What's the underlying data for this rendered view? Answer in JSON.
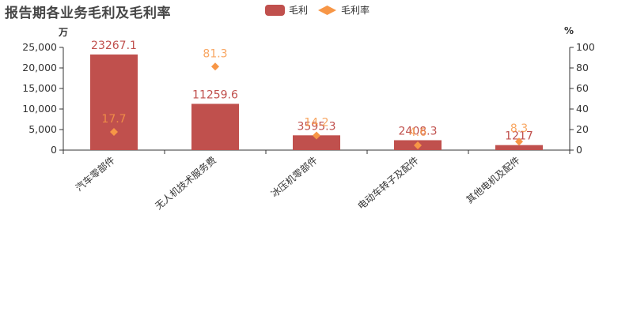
{
  "title": "报告期各业务毛利及毛利率",
  "legend": {
    "bar_label": "毛利",
    "line_label": "毛利率"
  },
  "units": {
    "left": "万",
    "right": "%"
  },
  "colors": {
    "bar": "#c0504d",
    "marker": "#f79646",
    "axis": "#333333"
  },
  "chart_data": {
    "type": "bar",
    "categories": [
      "汽车零部件",
      "无人机技术服务费",
      "冰压机零部件",
      "电动车转子及配件",
      "其他电机及配件"
    ],
    "series": [
      {
        "name": "毛利",
        "type": "bar",
        "axis": "left",
        "values": [
          23267.1,
          11259.6,
          3595.3,
          2408.3,
          1217
        ],
        "labels": [
          "23267.1",
          "11259.6",
          "3595.3",
          "2408.3",
          "1217"
        ]
      },
      {
        "name": "毛利率",
        "type": "scatter",
        "axis": "right",
        "values": [
          17.7,
          81.3,
          14.2,
          4.6,
          8.3
        ],
        "labels": [
          "17.7",
          "81.3",
          "14.2",
          "4.6",
          "8.3"
        ]
      }
    ],
    "y_left": {
      "min": 0,
      "max": 25000,
      "ticks": [
        0,
        5000,
        10000,
        15000,
        20000,
        25000
      ],
      "tick_labels": [
        "0",
        "5,000",
        "10,000",
        "15,000",
        "20,000",
        "25,000"
      ]
    },
    "y_right": {
      "min": 0,
      "max": 100,
      "ticks": [
        0,
        20,
        40,
        60,
        80,
        100
      ],
      "tick_labels": [
        "0",
        "20",
        "40",
        "60",
        "80",
        "100"
      ]
    },
    "grid": false,
    "legend_position": "top-center"
  }
}
